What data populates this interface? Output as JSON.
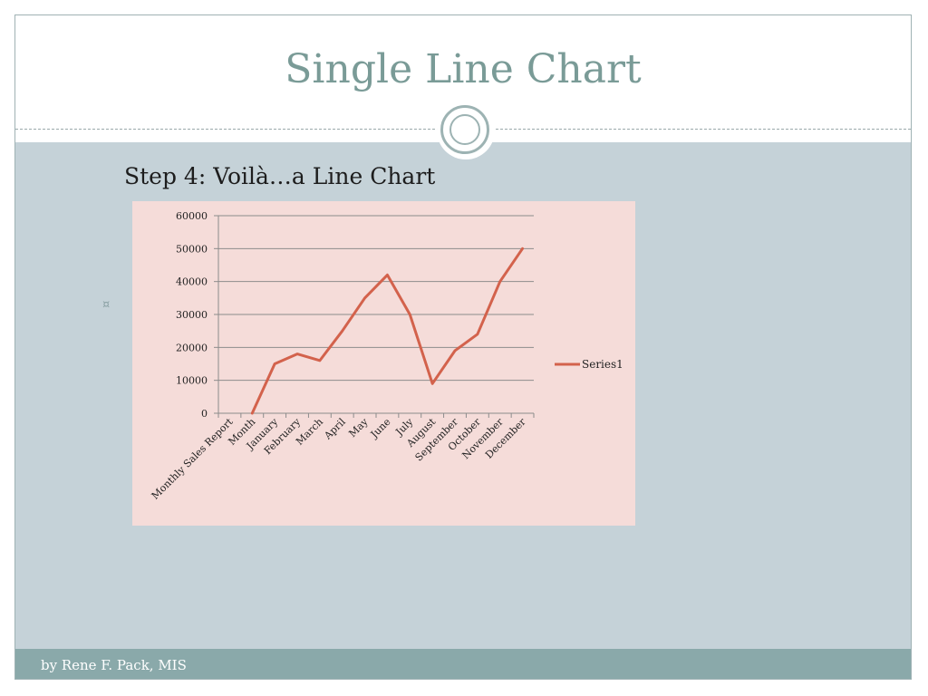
{
  "slide": {
    "title": "Single Line Chart",
    "bullet_text": "Step 4: Voilà…a Line Chart",
    "footer_text": "by Rene F. Pack, MIS"
  },
  "colors": {
    "title": "#7a9b97",
    "content_bg": "#c5d2d8",
    "chart_bg": "#f5dcd9",
    "line": "#d3624c",
    "footer": "#8aa9aa"
  },
  "icons": {
    "bullet": "bullet-mark-icon",
    "ornament": "circle-ornament-icon"
  },
  "chart_data": {
    "type": "line",
    "categories": [
      "Monthly Sales Report",
      "Month",
      "January",
      "February",
      "March",
      "April",
      "May",
      "June",
      "July",
      "August",
      "September",
      "October",
      "November",
      "December"
    ],
    "series": [
      {
        "name": "Series1",
        "values": [
          null,
          0,
          15000,
          18000,
          16000,
          25000,
          35000,
          42000,
          30000,
          9000,
          19000,
          24000,
          40000,
          50000
        ]
      }
    ],
    "title": "",
    "xlabel": "",
    "ylabel": "",
    "ylim": [
      0,
      60000
    ],
    "yticks": [
      0,
      10000,
      20000,
      30000,
      40000,
      50000,
      60000
    ],
    "grid": true,
    "legend": "right"
  }
}
